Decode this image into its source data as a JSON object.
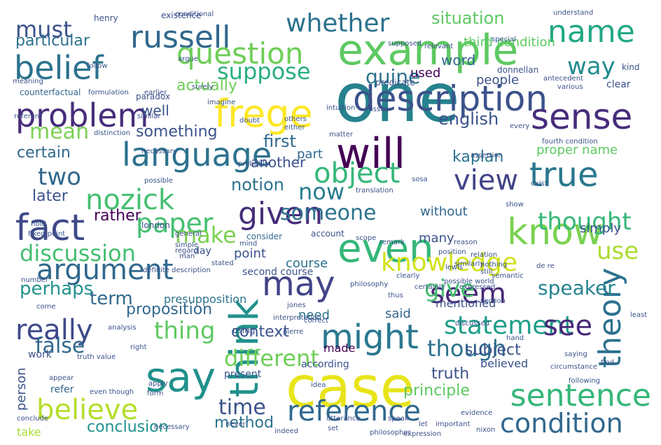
{
  "wordcloud": {
    "words": [
      {
        "text": "one",
        "color": "#26828e"
      },
      {
        "text": "case",
        "color": "#e8e419"
      },
      {
        "text": "example",
        "color": "#5ec962"
      },
      {
        "text": "description",
        "color": "#3b528b"
      },
      {
        "text": "say",
        "color": "#21918c"
      },
      {
        "text": "will",
        "color": "#440154"
      },
      {
        "text": "think",
        "color": "#21918c"
      },
      {
        "text": "sense",
        "color": "#472d7b"
      },
      {
        "text": "fact",
        "color": "#3e4989"
      },
      {
        "text": "even",
        "color": "#35b779"
      },
      {
        "text": "frege",
        "color": "#fde725"
      },
      {
        "text": "language",
        "color": "#2c728e"
      },
      {
        "text": "given",
        "color": "#472d7b"
      },
      {
        "text": "problem",
        "color": "#472d7b"
      },
      {
        "text": "belief",
        "color": "#2c728e"
      },
      {
        "text": "russell",
        "color": "#31688e"
      },
      {
        "text": "question",
        "color": "#6ece58"
      },
      {
        "text": "name",
        "color": "#22a884"
      },
      {
        "text": "true",
        "color": "#2a788e"
      },
      {
        "text": "know",
        "color": "#7ad151"
      },
      {
        "text": "might",
        "color": "#2a788e"
      },
      {
        "text": "sentence",
        "color": "#35b779"
      },
      {
        "text": "reference",
        "color": "#31688e"
      },
      {
        "text": "believe",
        "color": "#b5de2b"
      },
      {
        "text": "argument",
        "color": "#31688e"
      },
      {
        "text": "nozick",
        "color": "#44bf70"
      },
      {
        "text": "object",
        "color": "#35b779"
      },
      {
        "text": "really",
        "color": "#3e4989"
      },
      {
        "text": "condition",
        "color": "#31688e"
      },
      {
        "text": "may",
        "color": "#414487"
      },
      {
        "text": "view",
        "color": "#414487"
      },
      {
        "text": "seem",
        "color": "#482878"
      },
      {
        "text": "statement",
        "color": "#1f9e89"
      },
      {
        "text": "theory",
        "color": "#2c728e"
      },
      {
        "text": "see",
        "color": "#482878"
      },
      {
        "text": "thought",
        "color": "#35b779"
      },
      {
        "text": "knowledge",
        "color": "#d2e21b"
      },
      {
        "text": "use",
        "color": "#addc30"
      },
      {
        "text": "way",
        "color": "#228c8d"
      },
      {
        "text": "whether",
        "color": "#2c728e"
      },
      {
        "text": "suppose",
        "color": "#29af7f"
      },
      {
        "text": "paper",
        "color": "#44bf70"
      },
      {
        "text": "discussion",
        "color": "#44bf70"
      },
      {
        "text": "though",
        "color": "#2c728e"
      },
      {
        "text": "give",
        "color": "#44bf70"
      },
      {
        "text": "thing",
        "color": "#5ec962"
      },
      {
        "text": "time",
        "color": "#3b528b"
      },
      {
        "text": "must",
        "color": "#3b528b"
      },
      {
        "text": "two",
        "color": "#31688e"
      },
      {
        "text": "mean",
        "color": "#7ad151"
      },
      {
        "text": "make",
        "color": "#7ad151"
      },
      {
        "text": "someone",
        "color": "#2c728e"
      },
      {
        "text": "now",
        "color": "#287d8e"
      },
      {
        "text": "different",
        "color": "#6ece58"
      },
      {
        "text": "false",
        "color": "#31688e"
      },
      {
        "text": "speaker",
        "color": "#25848e"
      },
      {
        "text": "quine",
        "color": "#2c728e"
      },
      {
        "text": "perhaps",
        "color": "#21918c"
      },
      {
        "text": "term",
        "color": "#31688e"
      },
      {
        "text": "english",
        "color": "#3b528b"
      },
      {
        "text": "first",
        "color": "#31688e"
      },
      {
        "text": "notion",
        "color": "#2c728e"
      },
      {
        "text": "situation",
        "color": "#5ec962"
      },
      {
        "text": "particular",
        "color": "#2c728e"
      },
      {
        "text": "method",
        "color": "#2c728e"
      },
      {
        "text": "conclusion",
        "color": "#21918c"
      },
      {
        "text": "principle",
        "color": "#5ec962"
      },
      {
        "text": "truth",
        "color": "#3b528b"
      },
      {
        "text": "subject",
        "color": "#3b528b"
      },
      {
        "text": "context",
        "color": "#3b528b"
      },
      {
        "text": "proposition",
        "color": "#31688e"
      },
      {
        "text": "actually",
        "color": "#6ece58"
      },
      {
        "text": "something",
        "color": "#3b528b"
      },
      {
        "text": "certain",
        "color": "#31688e"
      },
      {
        "text": "rather",
        "color": "#440154"
      },
      {
        "text": "later",
        "color": "#3b528b"
      },
      {
        "text": "kaplan",
        "color": "#2c728e"
      },
      {
        "text": "proper name",
        "color": "#5ec962"
      },
      {
        "text": "third condition",
        "color": "#5ec962"
      },
      {
        "text": "word",
        "color": "#31688e"
      },
      {
        "text": "people",
        "color": "#3b528b"
      },
      {
        "text": "used",
        "color": "#440154"
      },
      {
        "text": "well",
        "color": "#3b528b"
      },
      {
        "text": "another",
        "color": "#3b528b"
      },
      {
        "text": "part",
        "color": "#31688e"
      },
      {
        "text": "simply",
        "color": "#3b528b"
      },
      {
        "text": "without",
        "color": "#31688e"
      },
      {
        "text": "many",
        "color": "#3b528b"
      },
      {
        "text": "course",
        "color": "#2c728e"
      },
      {
        "text": "point",
        "color": "#3b528b"
      },
      {
        "text": "second course",
        "color": "#3b528b"
      },
      {
        "text": "need",
        "color": "#2c728e"
      },
      {
        "text": "said",
        "color": "#31688e"
      },
      {
        "text": "made",
        "color": "#440154"
      },
      {
        "text": "mentioned",
        "color": "#3b528b"
      },
      {
        "text": "believed",
        "color": "#3b528b"
      },
      {
        "text": "according",
        "color": "#3b528b"
      },
      {
        "text": "present",
        "color": "#3b528b"
      },
      {
        "text": "take",
        "color": "#addc30"
      },
      {
        "text": "person",
        "color": "#3b528b"
      },
      {
        "text": "refer",
        "color": "#31688e"
      },
      {
        "text": "work",
        "color": "#3b528b"
      },
      {
        "text": "presupposition",
        "color": "#2c728e"
      },
      {
        "text": "day",
        "color": "#3b528b"
      },
      {
        "text": "account",
        "color": "#3b528b"
      },
      {
        "text": "consider",
        "color": "#31688e"
      },
      {
        "text": "london",
        "color": "#3b528b"
      },
      {
        "text": "using",
        "color": "#3b528b"
      },
      {
        "text": "clear",
        "color": "#3b528b"
      },
      {
        "text": "kind",
        "color": "#3b528b"
      },
      {
        "text": "henry",
        "color": "#3b528b"
      },
      {
        "text": "existence",
        "color": "#3b528b"
      },
      {
        "text": "conditional",
        "color": "#3b528b"
      },
      {
        "text": "understand",
        "color": "#3b528b"
      },
      {
        "text": "special",
        "color": "#3b528b"
      },
      {
        "text": "relevant",
        "color": "#3b528b"
      },
      {
        "text": "supposed",
        "color": "#3b528b"
      },
      {
        "text": "donnellan",
        "color": "#3b528b"
      },
      {
        "text": "various",
        "color": "#3b528b"
      },
      {
        "text": "antecedent",
        "color": "#3b528b"
      },
      {
        "text": "predicate",
        "color": "#3b528b"
      },
      {
        "text": "issue",
        "color": "#3b528b"
      },
      {
        "text": "counterfactual",
        "color": "#31688e"
      },
      {
        "text": "paradox",
        "color": "#3b528b"
      },
      {
        "text": "meaning",
        "color": "#3b528b"
      },
      {
        "text": "surely",
        "color": "#3b528b"
      },
      {
        "text": "follow",
        "color": "#3b528b"
      },
      {
        "text": "argue",
        "color": "#3b528b"
      },
      {
        "text": "imagine",
        "color": "#3b528b"
      },
      {
        "text": "earlier",
        "color": "#3b528b"
      },
      {
        "text": "formulation",
        "color": "#3b528b"
      },
      {
        "text": "similar",
        "color": "#3b528b"
      },
      {
        "text": "intuition",
        "color": "#3b528b"
      },
      {
        "text": "others",
        "color": "#3b528b"
      },
      {
        "text": "matter",
        "color": "#3b528b"
      },
      {
        "text": "doubt",
        "color": "#3b528b"
      },
      {
        "text": "referent",
        "color": "#3b528b"
      },
      {
        "text": "distinction",
        "color": "#3b528b"
      },
      {
        "text": "necessary",
        "color": "#3b528b"
      },
      {
        "text": "either",
        "color": "#3b528b"
      },
      {
        "text": "sosa",
        "color": "#3b528b"
      },
      {
        "text": "probably",
        "color": "#3b528b"
      },
      {
        "text": "possible",
        "color": "#3b528b"
      },
      {
        "text": "hold",
        "color": "#3b528b"
      },
      {
        "text": "fixed point",
        "color": "#3b528b"
      },
      {
        "text": "general",
        "color": "#3b528b"
      },
      {
        "text": "translation",
        "color": "#3b528b"
      },
      {
        "text": "reason",
        "color": "#3b528b"
      },
      {
        "text": "position",
        "color": "#3b528b"
      },
      {
        "text": "remark",
        "color": "#3b528b"
      },
      {
        "text": "semantic",
        "color": "#3b528b"
      },
      {
        "text": "nothing",
        "color": "#3b528b"
      },
      {
        "text": "de re",
        "color": "#3b528b"
      },
      {
        "text": "lewis",
        "color": "#3b528b"
      },
      {
        "text": "stated",
        "color": "#3b528b"
      },
      {
        "text": "mind",
        "color": "#3b528b"
      },
      {
        "text": "definite description",
        "color": "#3b528b"
      },
      {
        "text": "number",
        "color": "#3b528b"
      },
      {
        "text": "philosophy",
        "color": "#3b528b"
      },
      {
        "text": "jones",
        "color": "#3b528b"
      },
      {
        "text": "correct",
        "color": "#3b528b"
      },
      {
        "text": "come",
        "color": "#3b528b"
      },
      {
        "text": "analysis",
        "color": "#3b528b"
      },
      {
        "text": "right",
        "color": "#3b528b"
      },
      {
        "text": "truth value",
        "color": "#3b528b"
      },
      {
        "text": "appear",
        "color": "#3b528b"
      },
      {
        "text": "even though",
        "color": "#3b528b"
      },
      {
        "text": "never",
        "color": "#3b528b"
      },
      {
        "text": "necessary",
        "color": "#3b528b"
      },
      {
        "text": "indeed",
        "color": "#3b528b"
      },
      {
        "text": "set",
        "color": "#3b528b"
      },
      {
        "text": "philosopher",
        "color": "#3b528b"
      },
      {
        "text": "expression",
        "color": "#3b528b"
      },
      {
        "text": "nixon",
        "color": "#3b528b"
      },
      {
        "text": "saying",
        "color": "#3b528b"
      },
      {
        "text": "circumstance",
        "color": "#3b528b"
      },
      {
        "text": "utterance",
        "color": "#3b528b"
      },
      {
        "text": "idea",
        "color": "#3b528b"
      },
      {
        "text": "discussed",
        "color": "#3b528b"
      },
      {
        "text": "find",
        "color": "#3b528b"
      },
      {
        "text": "least",
        "color": "#3b528b"
      },
      {
        "text": "following",
        "color": "#3b528b"
      },
      {
        "text": "interpretation",
        "color": "#3b528b"
      },
      {
        "text": "pierre",
        "color": "#3b528b"
      },
      {
        "text": "possible world",
        "color": "#3b528b"
      },
      {
        "text": "clearly",
        "color": "#3b528b"
      },
      {
        "text": "thus",
        "color": "#3b528b"
      },
      {
        "text": "certainly",
        "color": "#3b528b"
      },
      {
        "text": "expressed",
        "color": "#3b528b"
      },
      {
        "text": "relation",
        "color": "#3b528b"
      },
      {
        "text": "still",
        "color": "#3b528b"
      },
      {
        "text": "exist",
        "color": "#3b528b"
      },
      {
        "text": "show",
        "color": "#3b528b"
      },
      {
        "text": "every",
        "color": "#3b528b"
      },
      {
        "text": "fourth condition",
        "color": "#3b528b"
      },
      {
        "text": "assertion",
        "color": "#3b528b"
      },
      {
        "text": "scope",
        "color": "#3b528b"
      },
      {
        "text": "simple",
        "color": "#3b528b"
      },
      {
        "text": "regard",
        "color": "#3b528b"
      },
      {
        "text": "man",
        "color": "#3b528b"
      },
      {
        "text": "speak",
        "color": "#3b528b"
      },
      {
        "text": "let",
        "color": "#3b528b"
      },
      {
        "text": "important",
        "color": "#3b528b"
      },
      {
        "text": "evidence",
        "color": "#3b528b"
      },
      {
        "text": "conclude",
        "color": "#3b528b"
      },
      {
        "text": "apply",
        "color": "#3b528b"
      },
      {
        "text": "form",
        "color": "#3b528b"
      },
      {
        "text": "similarly",
        "color": "#3b528b"
      },
      {
        "text": "section",
        "color": "#3b528b"
      },
      {
        "text": "hand",
        "color": "#3b528b"
      }
    ]
  }
}
